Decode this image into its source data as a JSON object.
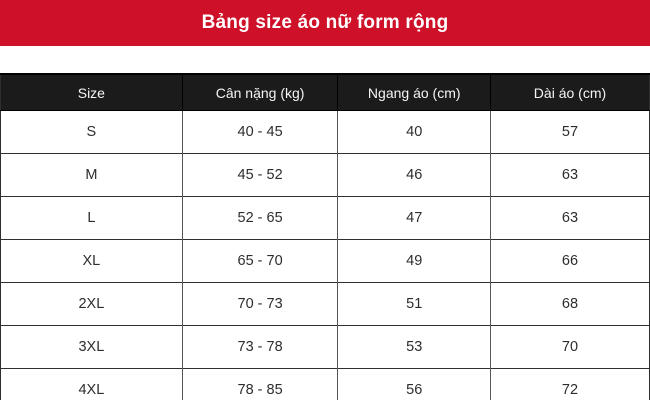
{
  "banner": {
    "title": "Bảng size áo nữ form rộng",
    "bg_color": "#ce1128",
    "text_color": "#ffffff"
  },
  "table": {
    "header_bg": "#1b1b1b",
    "header_text_color": "#f5f5f5",
    "columns": [
      "Size",
      "Cân nặng (kg)",
      "Ngang áo (cm)",
      "Dài áo (cm)"
    ],
    "column_keys": [
      "size",
      "weight-kg",
      "chest-width-cm",
      "shirt-length-cm"
    ],
    "rows": [
      [
        "S",
        "40 - 45",
        "40",
        "57"
      ],
      [
        "M",
        "45 - 52",
        "46",
        "63"
      ],
      [
        "L",
        "52 - 65",
        "47",
        "63"
      ],
      [
        "XL",
        "65 - 70",
        "49",
        "66"
      ],
      [
        "2XL",
        "70 - 73",
        "51",
        "68"
      ],
      [
        "3XL",
        "73 - 78",
        "53",
        "70"
      ],
      [
        "4XL",
        "78 - 85",
        "56",
        "72"
      ]
    ]
  },
  "chart_data": {
    "type": "table",
    "title": "Bảng size áo nữ form rộng",
    "columns": [
      "Size",
      "Cân nặng (kg)",
      "Ngang áo (cm)",
      "Dài áo (cm)"
    ],
    "rows": [
      [
        "S",
        "40 - 45",
        40,
        57
      ],
      [
        "M",
        "45 - 52",
        46,
        63
      ],
      [
        "L",
        "52 - 65",
        47,
        63
      ],
      [
        "XL",
        "65 - 70",
        49,
        66
      ],
      [
        "2XL",
        "70 - 73",
        51,
        68
      ],
      [
        "3XL",
        "73 - 78",
        53,
        70
      ],
      [
        "4XL",
        "78 - 85",
        56,
        72
      ]
    ]
  }
}
